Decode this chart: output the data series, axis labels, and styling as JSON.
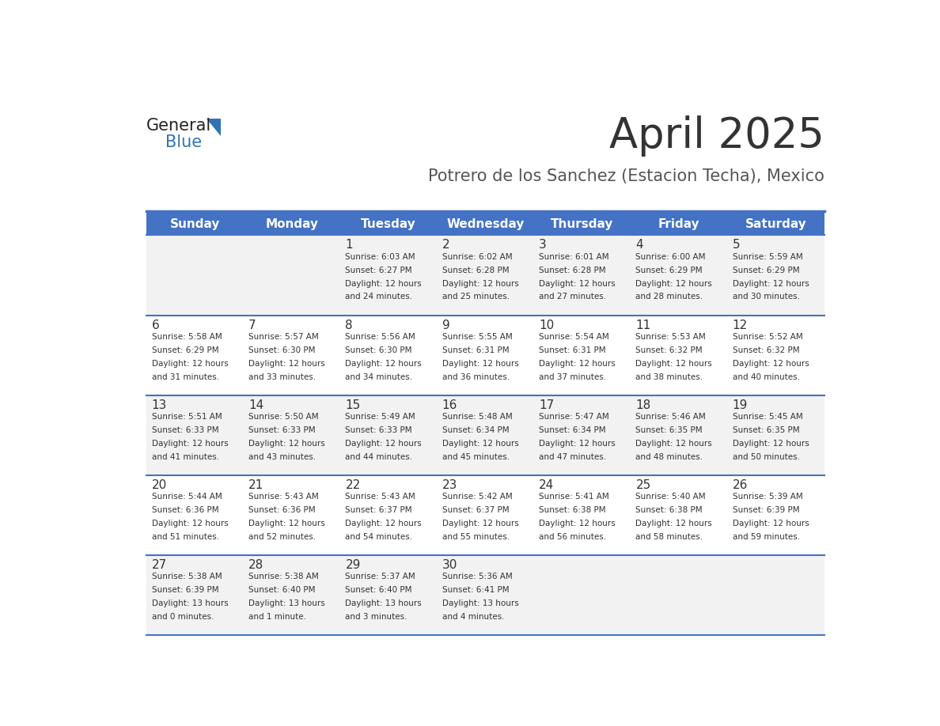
{
  "title": "April 2025",
  "subtitle": "Potrero de los Sanchez (Estacion Techa), Mexico",
  "days_of_week": [
    "Sunday",
    "Monday",
    "Tuesday",
    "Wednesday",
    "Thursday",
    "Friday",
    "Saturday"
  ],
  "header_bg": "#4472C4",
  "header_text": "#FFFFFF",
  "cell_bg_even": "#F2F2F2",
  "cell_bg_odd": "#FFFFFF",
  "divider_color": "#4472C4",
  "text_color": "#333333",
  "title_color": "#333333",
  "subtitle_color": "#555555",
  "logo_general_color": "#222222",
  "logo_blue_color": "#2E74B5",
  "calendar": [
    [
      {
        "day": "",
        "sunrise": "",
        "sunset": "",
        "daylight": ""
      },
      {
        "day": "",
        "sunrise": "",
        "sunset": "",
        "daylight": ""
      },
      {
        "day": "1",
        "sunrise": "Sunrise: 6:03 AM",
        "sunset": "Sunset: 6:27 PM",
        "daylight": "Daylight: 12 hours\nand 24 minutes."
      },
      {
        "day": "2",
        "sunrise": "Sunrise: 6:02 AM",
        "sunset": "Sunset: 6:28 PM",
        "daylight": "Daylight: 12 hours\nand 25 minutes."
      },
      {
        "day": "3",
        "sunrise": "Sunrise: 6:01 AM",
        "sunset": "Sunset: 6:28 PM",
        "daylight": "Daylight: 12 hours\nand 27 minutes."
      },
      {
        "day": "4",
        "sunrise": "Sunrise: 6:00 AM",
        "sunset": "Sunset: 6:29 PM",
        "daylight": "Daylight: 12 hours\nand 28 minutes."
      },
      {
        "day": "5",
        "sunrise": "Sunrise: 5:59 AM",
        "sunset": "Sunset: 6:29 PM",
        "daylight": "Daylight: 12 hours\nand 30 minutes."
      }
    ],
    [
      {
        "day": "6",
        "sunrise": "Sunrise: 5:58 AM",
        "sunset": "Sunset: 6:29 PM",
        "daylight": "Daylight: 12 hours\nand 31 minutes."
      },
      {
        "day": "7",
        "sunrise": "Sunrise: 5:57 AM",
        "sunset": "Sunset: 6:30 PM",
        "daylight": "Daylight: 12 hours\nand 33 minutes."
      },
      {
        "day": "8",
        "sunrise": "Sunrise: 5:56 AM",
        "sunset": "Sunset: 6:30 PM",
        "daylight": "Daylight: 12 hours\nand 34 minutes."
      },
      {
        "day": "9",
        "sunrise": "Sunrise: 5:55 AM",
        "sunset": "Sunset: 6:31 PM",
        "daylight": "Daylight: 12 hours\nand 36 minutes."
      },
      {
        "day": "10",
        "sunrise": "Sunrise: 5:54 AM",
        "sunset": "Sunset: 6:31 PM",
        "daylight": "Daylight: 12 hours\nand 37 minutes."
      },
      {
        "day": "11",
        "sunrise": "Sunrise: 5:53 AM",
        "sunset": "Sunset: 6:32 PM",
        "daylight": "Daylight: 12 hours\nand 38 minutes."
      },
      {
        "day": "12",
        "sunrise": "Sunrise: 5:52 AM",
        "sunset": "Sunset: 6:32 PM",
        "daylight": "Daylight: 12 hours\nand 40 minutes."
      }
    ],
    [
      {
        "day": "13",
        "sunrise": "Sunrise: 5:51 AM",
        "sunset": "Sunset: 6:33 PM",
        "daylight": "Daylight: 12 hours\nand 41 minutes."
      },
      {
        "day": "14",
        "sunrise": "Sunrise: 5:50 AM",
        "sunset": "Sunset: 6:33 PM",
        "daylight": "Daylight: 12 hours\nand 43 minutes."
      },
      {
        "day": "15",
        "sunrise": "Sunrise: 5:49 AM",
        "sunset": "Sunset: 6:33 PM",
        "daylight": "Daylight: 12 hours\nand 44 minutes."
      },
      {
        "day": "16",
        "sunrise": "Sunrise: 5:48 AM",
        "sunset": "Sunset: 6:34 PM",
        "daylight": "Daylight: 12 hours\nand 45 minutes."
      },
      {
        "day": "17",
        "sunrise": "Sunrise: 5:47 AM",
        "sunset": "Sunset: 6:34 PM",
        "daylight": "Daylight: 12 hours\nand 47 minutes."
      },
      {
        "day": "18",
        "sunrise": "Sunrise: 5:46 AM",
        "sunset": "Sunset: 6:35 PM",
        "daylight": "Daylight: 12 hours\nand 48 minutes."
      },
      {
        "day": "19",
        "sunrise": "Sunrise: 5:45 AM",
        "sunset": "Sunset: 6:35 PM",
        "daylight": "Daylight: 12 hours\nand 50 minutes."
      }
    ],
    [
      {
        "day": "20",
        "sunrise": "Sunrise: 5:44 AM",
        "sunset": "Sunset: 6:36 PM",
        "daylight": "Daylight: 12 hours\nand 51 minutes."
      },
      {
        "day": "21",
        "sunrise": "Sunrise: 5:43 AM",
        "sunset": "Sunset: 6:36 PM",
        "daylight": "Daylight: 12 hours\nand 52 minutes."
      },
      {
        "day": "22",
        "sunrise": "Sunrise: 5:43 AM",
        "sunset": "Sunset: 6:37 PM",
        "daylight": "Daylight: 12 hours\nand 54 minutes."
      },
      {
        "day": "23",
        "sunrise": "Sunrise: 5:42 AM",
        "sunset": "Sunset: 6:37 PM",
        "daylight": "Daylight: 12 hours\nand 55 minutes."
      },
      {
        "day": "24",
        "sunrise": "Sunrise: 5:41 AM",
        "sunset": "Sunset: 6:38 PM",
        "daylight": "Daylight: 12 hours\nand 56 minutes."
      },
      {
        "day": "25",
        "sunrise": "Sunrise: 5:40 AM",
        "sunset": "Sunset: 6:38 PM",
        "daylight": "Daylight: 12 hours\nand 58 minutes."
      },
      {
        "day": "26",
        "sunrise": "Sunrise: 5:39 AM",
        "sunset": "Sunset: 6:39 PM",
        "daylight": "Daylight: 12 hours\nand 59 minutes."
      }
    ],
    [
      {
        "day": "27",
        "sunrise": "Sunrise: 5:38 AM",
        "sunset": "Sunset: 6:39 PM",
        "daylight": "Daylight: 13 hours\nand 0 minutes."
      },
      {
        "day": "28",
        "sunrise": "Sunrise: 5:38 AM",
        "sunset": "Sunset: 6:40 PM",
        "daylight": "Daylight: 13 hours\nand 1 minute."
      },
      {
        "day": "29",
        "sunrise": "Sunrise: 5:37 AM",
        "sunset": "Sunset: 6:40 PM",
        "daylight": "Daylight: 13 hours\nand 3 minutes."
      },
      {
        "day": "30",
        "sunrise": "Sunrise: 5:36 AM",
        "sunset": "Sunset: 6:41 PM",
        "daylight": "Daylight: 13 hours\nand 4 minutes."
      },
      {
        "day": "",
        "sunrise": "",
        "sunset": "",
        "daylight": ""
      },
      {
        "day": "",
        "sunrise": "",
        "sunset": "",
        "daylight": ""
      },
      {
        "day": "",
        "sunrise": "",
        "sunset": "",
        "daylight": ""
      }
    ]
  ]
}
